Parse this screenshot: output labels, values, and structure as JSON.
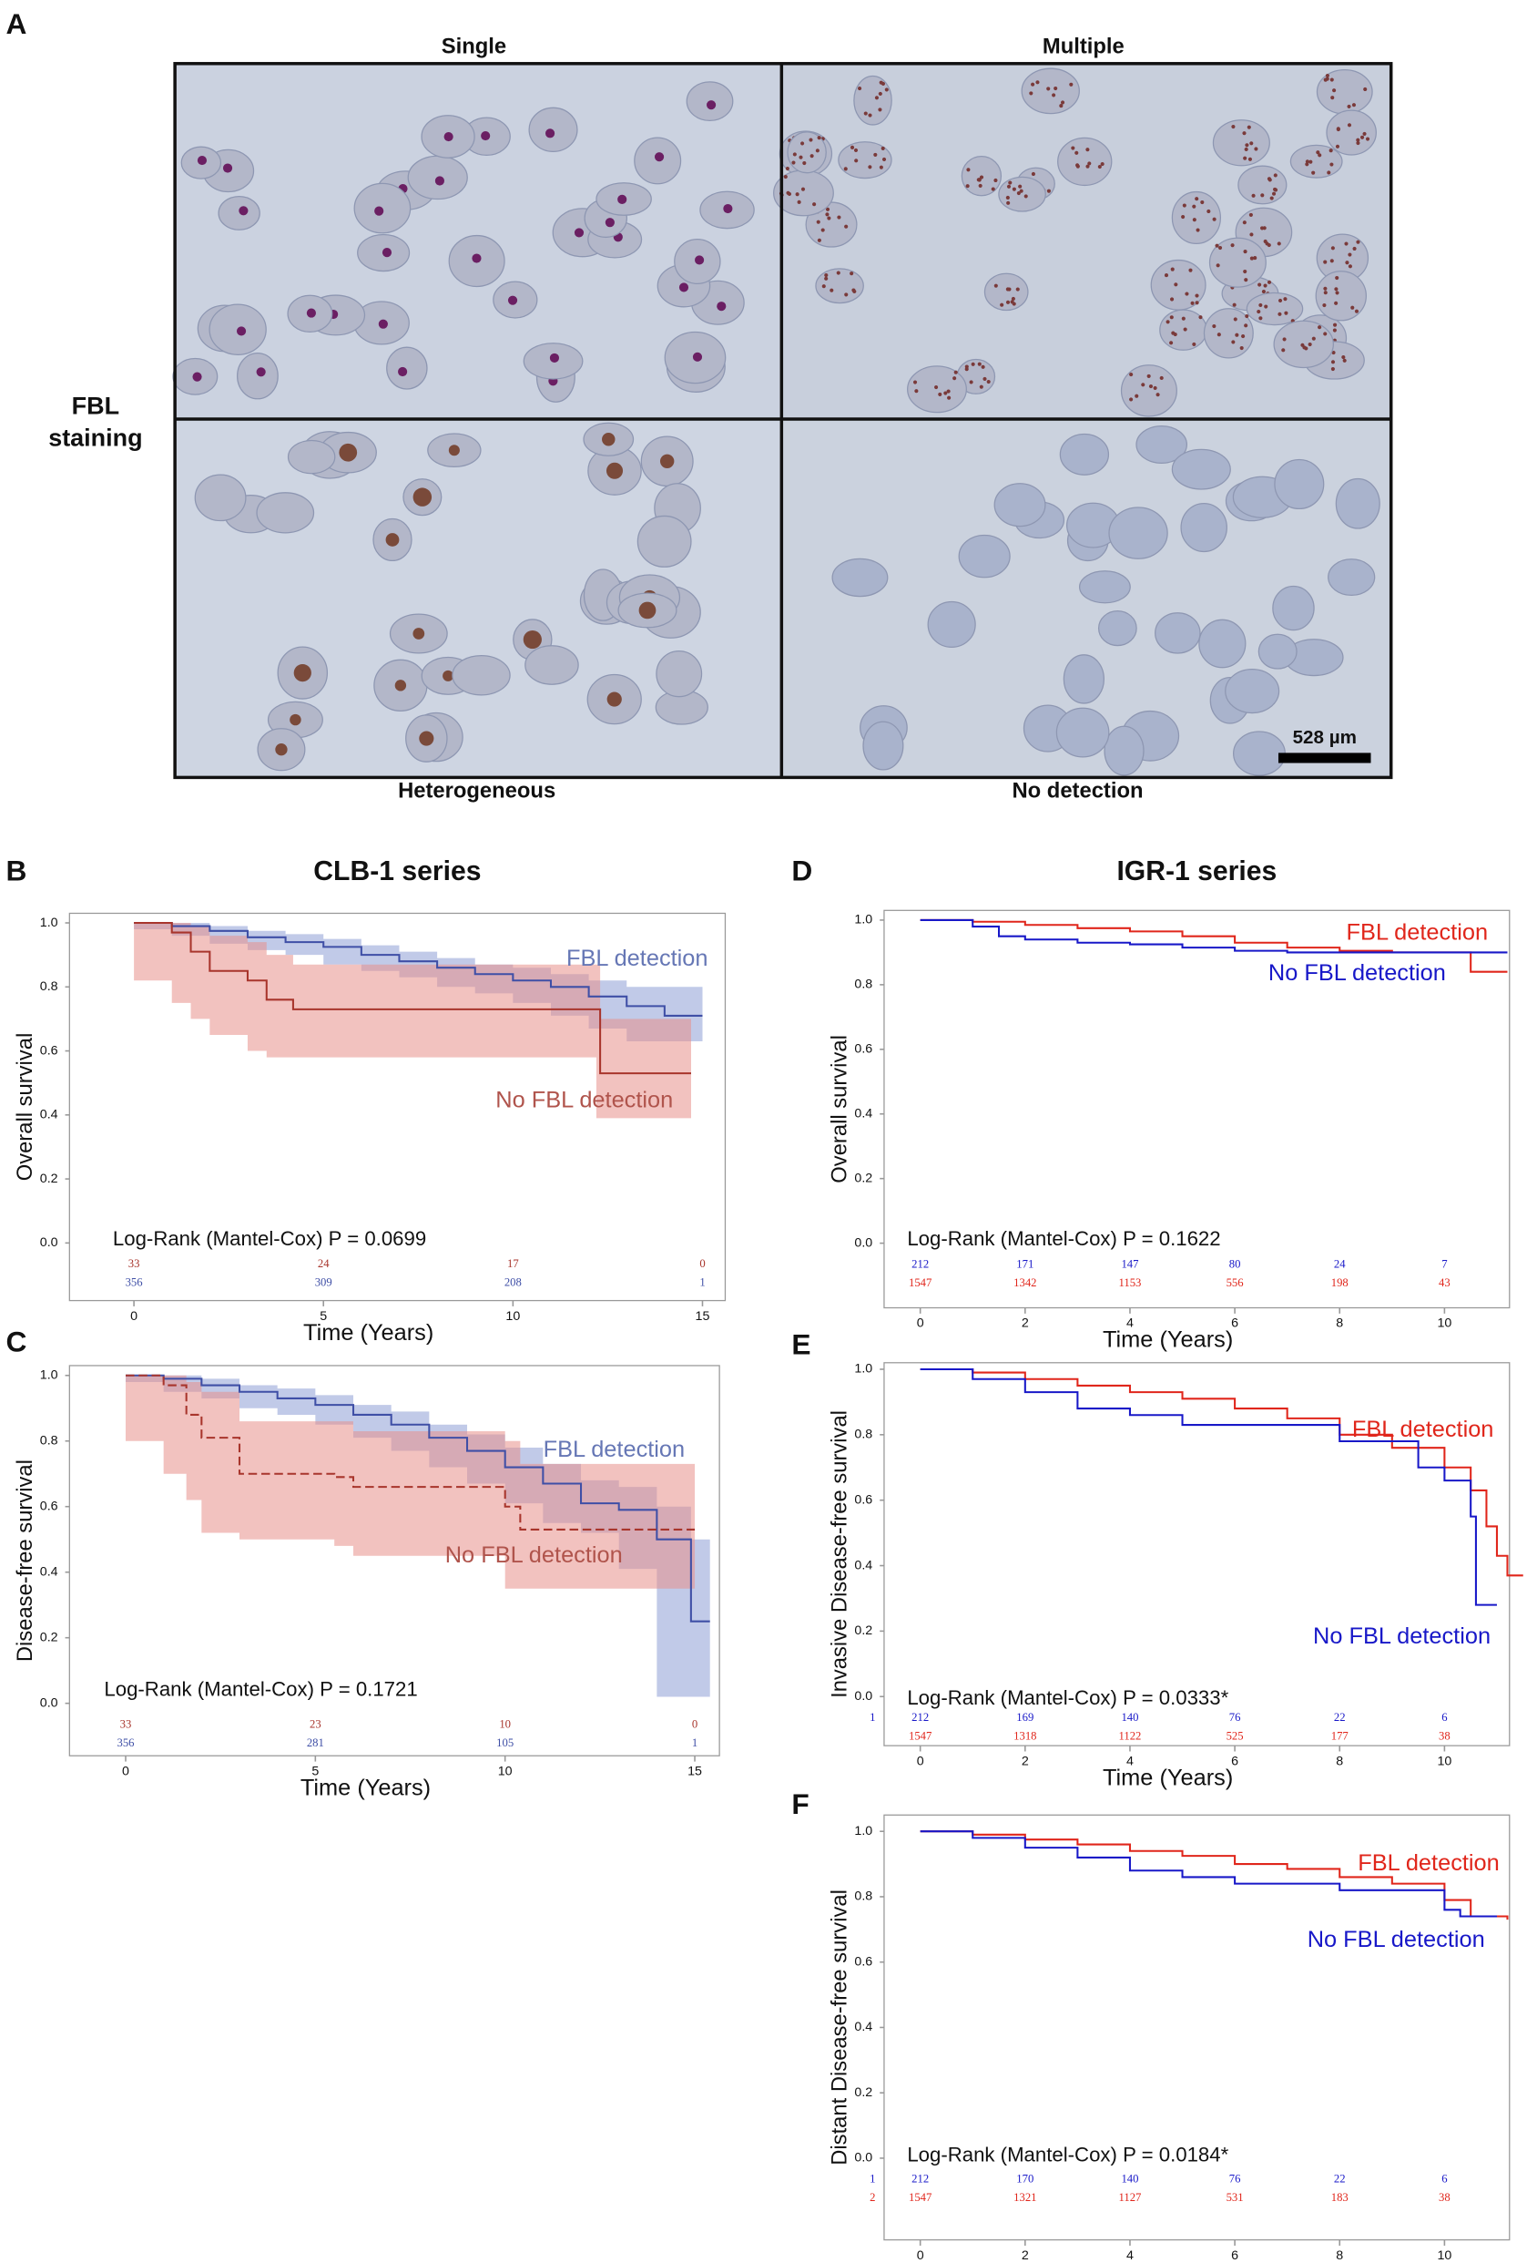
{
  "panel_a": {
    "panel": "A",
    "columns": [
      "Single",
      "Multiple"
    ],
    "row_label": [
      "FBL",
      "staining"
    ],
    "bottom_labels": [
      "Heterogeneous",
      "No detection"
    ],
    "scale_bar": "528 µm"
  },
  "chart_data": [
    {
      "type": "step",
      "panel": "B",
      "title": "CLB-1 series",
      "xlabel": "Time (Years)",
      "ylabel": "Overall survival",
      "annotation": "Log-Rank (Mantel-Cox) P = 0.0699",
      "xlim": [
        -1.7,
        15.6
      ],
      "ylim": [
        -0.18,
        1.03
      ],
      "xticks": [
        0,
        5,
        10,
        15
      ],
      "yticks": [
        {
          "value": 0,
          "label": "0.0"
        },
        0.2,
        0.4,
        0.6,
        0.8,
        {
          "value": 1,
          "label": "1.0"
        }
      ],
      "series": [
        {
          "name": "FBL detection",
          "color": "#3f4fa6",
          "label_color": "#6677b5",
          "band_color": "#8e9fd6",
          "x": [
            0,
            1,
            2,
            3,
            4,
            5,
            6,
            7,
            8,
            9,
            10,
            11,
            12,
            13,
            14,
            15
          ],
          "values": [
            1,
            0.99,
            0.975,
            0.955,
            0.94,
            0.925,
            0.9,
            0.88,
            0.86,
            0.84,
            0.82,
            0.8,
            0.77,
            0.74,
            0.71,
            0.71
          ],
          "lower": [
            1,
            0.98,
            0.96,
            0.935,
            0.915,
            0.9,
            0.87,
            0.85,
            0.83,
            0.8,
            0.78,
            0.75,
            0.71,
            0.67,
            0.63,
            0.63
          ],
          "upper": [
            1,
            1,
            0.99,
            0.975,
            0.965,
            0.95,
            0.93,
            0.91,
            0.89,
            0.87,
            0.86,
            0.84,
            0.82,
            0.8,
            0.8,
            0.8
          ],
          "at_risk": [
            356,
            309,
            208,
            1
          ]
        },
        {
          "name": "No FBL detection",
          "color": "#a8352c",
          "label_color": "#b0544c",
          "band_color": "#e8908a",
          "x": [
            0,
            1,
            1.5,
            2,
            3,
            3.5,
            4.2,
            12.2,
            12.3,
            14.7
          ],
          "values": [
            1,
            0.97,
            0.91,
            0.85,
            0.82,
            0.76,
            0.73,
            0.73,
            0.53,
            0.53
          ],
          "lower": [
            1,
            0.82,
            0.75,
            0.7,
            0.65,
            0.6,
            0.58,
            0.58,
            0.39,
            0.39
          ],
          "upper": [
            1,
            1,
            0.99,
            0.96,
            0.94,
            0.9,
            0.87,
            0.87,
            0.7,
            0.7
          ],
          "at_risk": [
            33,
            24,
            17,
            0
          ]
        }
      ]
    },
    {
      "type": "step",
      "panel": "C",
      "xlabel": "Time (Years)",
      "ylabel": "Disease-free survival",
      "annotation": "Log-Rank (Mantel-Cox) P = 0.1721",
      "xlim": [
        -1.48,
        15.65
      ],
      "ylim": [
        -0.16,
        1.03
      ],
      "xticks": [
        0,
        5,
        10,
        15
      ],
      "yticks": [
        {
          "value": 0,
          "label": "0.0"
        },
        0.2,
        0.4,
        0.6,
        0.8,
        {
          "value": 1,
          "label": "1.0"
        }
      ],
      "series": [
        {
          "name": "FBL detection",
          "color": "#3f4fa6",
          "label_color": "#6677b5",
          "band_color": "#8e9fd6",
          "x": [
            0,
            1,
            2,
            3,
            4,
            5,
            6,
            7,
            8,
            9,
            10,
            11,
            12,
            13,
            14,
            14.9,
            15.4
          ],
          "values": [
            1,
            0.99,
            0.97,
            0.95,
            0.93,
            0.91,
            0.88,
            0.85,
            0.81,
            0.77,
            0.72,
            0.67,
            0.61,
            0.59,
            0.5,
            0.25,
            0.25
          ],
          "lower": [
            1,
            0.98,
            0.95,
            0.93,
            0.9,
            0.88,
            0.85,
            0.81,
            0.77,
            0.72,
            0.67,
            0.61,
            0.55,
            0.52,
            0.41,
            0.02,
            0.02
          ],
          "upper": [
            1,
            1,
            0.99,
            0.97,
            0.96,
            0.94,
            0.91,
            0.89,
            0.85,
            0.82,
            0.78,
            0.73,
            0.68,
            0.66,
            0.6,
            0.5,
            0.5
          ],
          "at_risk": [
            356,
            281,
            105,
            1
          ]
        },
        {
          "name": "No FBL detection",
          "color": "#a8352c",
          "label_color": "#b0544c",
          "band_color": "#e8908a",
          "dash": true,
          "x": [
            0,
            1,
            1.6,
            2,
            3,
            5.5,
            6,
            10,
            10.4,
            15
          ],
          "values": [
            1,
            0.97,
            0.88,
            0.81,
            0.7,
            0.69,
            0.66,
            0.6,
            0.53,
            0.53
          ],
          "lower": [
            1,
            0.8,
            0.7,
            0.62,
            0.52,
            0.5,
            0.48,
            0.45,
            0.35,
            0.35
          ],
          "upper": [
            1,
            1,
            0.98,
            0.95,
            0.86,
            0.86,
            0.83,
            0.8,
            0.73,
            0.73
          ],
          "at_risk": [
            33,
            23,
            10,
            0
          ]
        }
      ]
    },
    {
      "type": "step",
      "panel": "D",
      "title": "IGR-1 series",
      "xlabel": "Time (Years)",
      "ylabel": "Overall survival",
      "annotation": "Log-Rank (Mantel-Cox) P = 0.1622",
      "xlim": [
        -0.69,
        11.24
      ],
      "ylim": [
        -0.2,
        1.03
      ],
      "xticks": [
        0,
        2,
        4,
        6,
        8,
        10
      ],
      "yticks": [
        {
          "value": 0,
          "label": "0.0"
        },
        0.2,
        0.4,
        0.6,
        0.8,
        {
          "value": 1,
          "label": "1.0"
        }
      ],
      "series": [
        {
          "name": "FBL detection",
          "color": "#e0261b",
          "x": [
            0,
            1,
            2,
            3,
            4,
            5,
            6,
            7,
            8,
            9,
            10.3,
            10.5,
            11.2
          ],
          "values": [
            1,
            0.995,
            0.985,
            0.975,
            0.965,
            0.95,
            0.93,
            0.915,
            0.905,
            0.9,
            0.9,
            0.84,
            0.84
          ],
          "at_risk": [
            1547,
            1342,
            1153,
            556,
            198,
            43
          ]
        },
        {
          "name": "No FBL detection",
          "color": "#1818c8",
          "x": [
            0,
            1,
            1.5,
            2,
            3,
            4,
            5,
            6,
            7,
            11.2
          ],
          "values": [
            1,
            0.98,
            0.95,
            0.94,
            0.93,
            0.925,
            0.915,
            0.905,
            0.9,
            0.9
          ],
          "at_risk": [
            212,
            171,
            147,
            80,
            24,
            7
          ]
        }
      ]
    },
    {
      "type": "step",
      "panel": "E",
      "xlabel": "Time (Years)",
      "ylabel": "Invasive Disease-free survival",
      "annotation": "Log-Rank (Mantel-Cox) P = 0.0333*",
      "xlim": [
        -0.69,
        11.24
      ],
      "ylim": [
        -0.15,
        1.02
      ],
      "xticks": [
        0,
        2,
        4,
        6,
        8,
        10
      ],
      "yticks": [
        {
          "value": 0,
          "label": "0.0"
        },
        0.2,
        0.4,
        0.6,
        0.8,
        {
          "value": 1,
          "label": "1.0"
        }
      ],
      "series": [
        {
          "name": "FBL detection",
          "color": "#e0261b",
          "x": [
            0,
            1,
            2,
            3,
            4,
            5,
            6,
            7,
            8,
            9,
            10,
            10.5,
            10.8,
            11,
            11.2,
            11.5
          ],
          "values": [
            1,
            0.99,
            0.97,
            0.95,
            0.93,
            0.91,
            0.88,
            0.85,
            0.8,
            0.76,
            0.7,
            0.63,
            0.52,
            0.43,
            0.37,
            0.37
          ],
          "at_risk": [
            1547,
            1318,
            1122,
            525,
            177,
            38
          ]
        },
        {
          "name": "No FBL detection",
          "color": "#1818c8",
          "row_label": "1",
          "x": [
            0,
            1,
            2,
            3,
            4,
            5,
            7,
            8,
            9,
            9.5,
            10,
            10.5,
            10.6,
            11
          ],
          "values": [
            1,
            0.97,
            0.93,
            0.88,
            0.86,
            0.83,
            0.83,
            0.78,
            0.78,
            0.7,
            0.66,
            0.55,
            0.28,
            0.28
          ],
          "at_risk": [
            212,
            169,
            140,
            76,
            22,
            6
          ]
        }
      ]
    },
    {
      "type": "step",
      "panel": "F",
      "xlabel": "Time (Years)",
      "ylabel": "Distant Disease-free survival",
      "annotation": "Log-Rank (Mantel-Cox) P = 0.0184*",
      "xlim": [
        -0.69,
        11.24
      ],
      "ylim": [
        -0.25,
        1.05
      ],
      "xticks": [
        0,
        2,
        4,
        6,
        8,
        10
      ],
      "yticks": [
        {
          "value": 0,
          "label": "0.0"
        },
        0.2,
        0.4,
        0.6,
        0.8,
        {
          "value": 1,
          "label": "1.0"
        }
      ],
      "series": [
        {
          "name": "FBL detection",
          "color": "#e0261b",
          "row_label": "2",
          "x": [
            0,
            1,
            2,
            3,
            4,
            5,
            6,
            7,
            8,
            9,
            10,
            10.5,
            11.2
          ],
          "values": [
            1,
            0.99,
            0.975,
            0.96,
            0.94,
            0.925,
            0.9,
            0.885,
            0.86,
            0.84,
            0.79,
            0.74,
            0.73
          ],
          "at_risk": [
            1547,
            1321,
            1127,
            531,
            183,
            38
          ]
        },
        {
          "name": "No FBL detection",
          "color": "#1818c8",
          "row_label": "1",
          "x": [
            0,
            1,
            2,
            3,
            4,
            5,
            6,
            8,
            9,
            10,
            10.3,
            11
          ],
          "values": [
            1,
            0.98,
            0.95,
            0.92,
            0.88,
            0.86,
            0.84,
            0.82,
            0.82,
            0.76,
            0.74,
            0.74
          ],
          "at_risk": [
            212,
            170,
            140,
            76,
            22,
            6
          ]
        }
      ]
    }
  ]
}
